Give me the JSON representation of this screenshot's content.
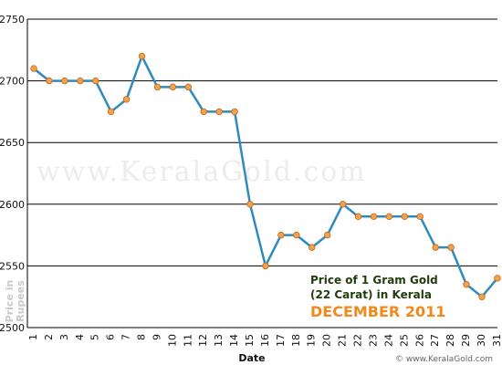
{
  "chart_data": {
    "type": "line",
    "title_line1": "Price of 1 Gram Gold",
    "title_line2": "(22 Carat) in Kerala",
    "subtitle": "DECEMBER 2011",
    "xlabel": "Date",
    "ylabel_line1": "Price in",
    "ylabel_line2": "Rupees",
    "watermark": "www.KeralaGold.com",
    "credit": "© www.KeralaGold.com",
    "ylim": [
      2500,
      2750
    ],
    "yticks": [
      2500,
      2550,
      2600,
      2650,
      2700,
      2750
    ],
    "grid": true,
    "x": [
      "1",
      "2",
      "3",
      "4",
      "5",
      "6",
      "7",
      "8",
      "9",
      "10",
      "11",
      "12",
      "13",
      "14",
      "15",
      "16",
      "17",
      "18",
      "19",
      "20",
      "21",
      "22",
      "23",
      "24",
      "25",
      "26",
      "27",
      "28",
      "29",
      "30",
      "31"
    ],
    "values": [
      2710,
      2700,
      2700,
      2700,
      2700,
      2675,
      2685,
      2720,
      2695,
      2695,
      2695,
      2675,
      2675,
      2675,
      2600,
      2550,
      2575,
      2575,
      2565,
      2575,
      2600,
      2590,
      2590,
      2590,
      2590,
      2590,
      2565,
      2565,
      2535,
      2525,
      2540
    ],
    "colors": {
      "line": "#2e8bbf",
      "marker": "#f5a04a",
      "marker_edge": "#c0671a",
      "grid": "#000000",
      "axis": "#000000"
    }
  }
}
